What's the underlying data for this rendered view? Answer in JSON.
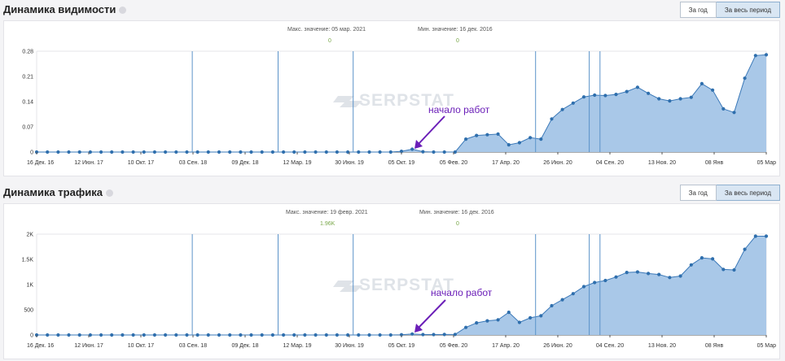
{
  "panels": [
    {
      "title": "Динамика видимости",
      "buttons": [
        "За год",
        "За весь период"
      ],
      "active_button": 1,
      "max_label": "Макс. значение: 05 мар. 2021",
      "max_value": "0",
      "min_label": "Мин. значение: 16 дек. 2016",
      "min_value": "0",
      "annotation": "начало работ",
      "watermark": "SERPSTAT"
    },
    {
      "title": "Динамика трафика",
      "buttons": [
        "За год",
        "За весь период"
      ],
      "active_button": 1,
      "max_label": "Макс. значение: 19 февр. 2021",
      "max_value": "1.96K",
      "min_label": "Мин. значение: 16 дек. 2016",
      "min_value": "0",
      "annotation": "начало работ",
      "watermark": "SERPSTAT"
    }
  ],
  "colors": {
    "area": "#a9c8e8",
    "line": "#3a78b8",
    "marker": "#2f6fad",
    "vline": "#5b93c9",
    "max_value": "#7aa84a",
    "annotation": "#6b1fb8"
  },
  "chart_data": [
    {
      "type": "area",
      "title": "Динамика видимости",
      "x_tick_labels": [
        "16 Дек. 16",
        "12 Июн. 17",
        "10 Окт. 17",
        "03 Сен. 18",
        "09 Дек. 18",
        "12 Мар. 19",
        "30 Июн. 19",
        "05 Окт. 19",
        "05 Фев. 20",
        "17 Апр. 20",
        "26 Июн. 20",
        "04 Сен. 20",
        "13 Ноя. 20",
        "08 Янв",
        "05 Мар"
      ],
      "y_tick_labels": [
        "0",
        "0.07",
        "0.14",
        "0.21",
        "0.28"
      ],
      "ylim": [
        0,
        0.28
      ],
      "event_markers": [
        14.5,
        22.5,
        29.5,
        46.5,
        51.5,
        52.5
      ],
      "annotation_index": 35,
      "values": [
        0,
        0,
        0,
        0,
        0,
        0,
        0,
        0,
        0,
        0,
        0,
        0,
        0,
        0,
        0,
        0,
        0,
        0,
        0,
        0,
        0,
        0,
        0,
        0,
        0,
        0,
        0,
        0,
        0,
        0,
        0,
        0,
        0,
        0,
        0.002,
        0.008,
        0.001,
        0,
        0,
        0,
        0.036,
        0.046,
        0.048,
        0.05,
        0.02,
        0.026,
        0.04,
        0.036,
        0.092,
        0.118,
        0.136,
        0.153,
        0.158,
        0.157,
        0.16,
        0.168,
        0.18,
        0.163,
        0.148,
        0.142,
        0.148,
        0.152,
        0.19,
        0.172,
        0.12,
        0.11,
        0.205,
        0.268,
        0.27
      ]
    },
    {
      "type": "area",
      "title": "Динамика трафика",
      "x_tick_labels": [
        "16 Дек. 16",
        "12 Июн. 17",
        "10 Окт. 17",
        "03 Сен. 18",
        "09 Дек. 18",
        "12 Мар. 19",
        "30 Июн. 19",
        "05 Окт. 19",
        "05 Фев. 20",
        "17 Апр. 20",
        "26 Июн. 20",
        "04 Сен. 20",
        "13 Ноя. 20",
        "08 Янв",
        "05 Мар"
      ],
      "y_tick_labels": [
        "0",
        "500",
        "1K",
        "1.5K",
        "2K"
      ],
      "ylim": [
        0,
        2000
      ],
      "event_markers": [
        14.5,
        22.5,
        29.5,
        46.5,
        51.5,
        52.5
      ],
      "annotation_index": 35,
      "values": [
        0,
        0,
        0,
        0,
        0,
        0,
        0,
        0,
        0,
        0,
        0,
        0,
        0,
        0,
        0,
        0,
        0,
        0,
        0,
        0,
        0,
        0,
        0,
        0,
        0,
        0,
        0,
        0,
        0,
        0,
        0,
        0,
        0,
        0,
        5,
        20,
        8,
        8,
        10,
        12,
        150,
        240,
        280,
        300,
        450,
        250,
        340,
        380,
        580,
        700,
        820,
        960,
        1040,
        1080,
        1150,
        1240,
        1250,
        1220,
        1200,
        1140,
        1170,
        1390,
        1530,
        1510,
        1300,
        1290,
        1700,
        1960,
        1960
      ]
    }
  ]
}
